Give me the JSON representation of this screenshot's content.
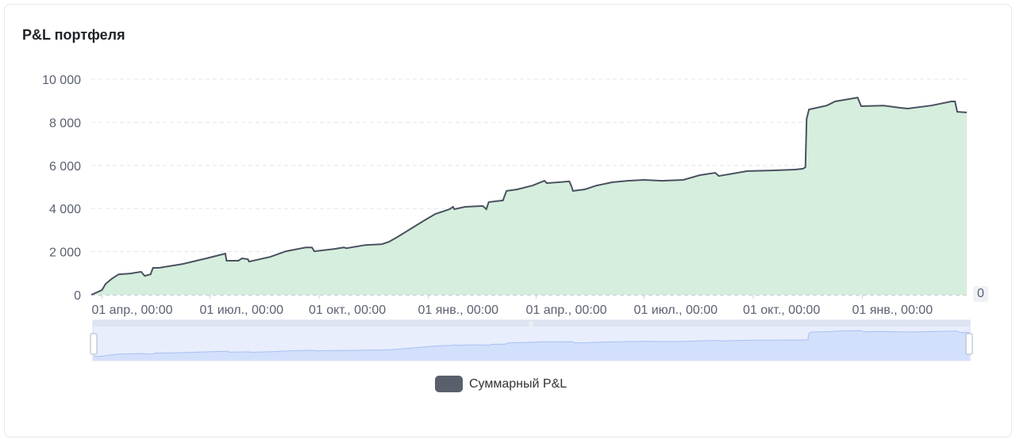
{
  "title": "P&L портфеля",
  "end_badge": "0",
  "legend": {
    "label": "Суммарный P&L",
    "color": "#5a606b"
  },
  "chart_data": {
    "type": "area",
    "title": "P&L портфеля",
    "xlabel": "",
    "ylabel": "",
    "ylim": [
      0,
      10000
    ],
    "xlim": [
      "2023-03-23",
      "2025-03-30"
    ],
    "grid": true,
    "legend_position": "bottom",
    "y_ticks": [
      0,
      2000,
      4000,
      6000,
      8000,
      10000
    ],
    "y_tick_labels": [
      "0",
      "2 000",
      "4 000",
      "6 000",
      "8 000",
      "10 000"
    ],
    "x_ticks": [
      "2023-04-01",
      "2023-07-01",
      "2023-10-01",
      "2024-01-01",
      "2024-04-01",
      "2024-07-01",
      "2024-10-01",
      "2025-01-01"
    ],
    "x_tick_labels": [
      "01 апр., 00:00",
      "01 июл., 00:00",
      "01 окт., 00:00",
      "01 янв., 00:00",
      "01 апр., 00:00",
      "01 июл., 00:00",
      "01 окт., 00:00",
      "01 янв., 00:00"
    ],
    "colors": {
      "line": "#4a5160",
      "area": "#d6eedd",
      "grid": "#e0e6f1",
      "slider_fill": "#d3e0fb",
      "slider_line": "#a9c0f5"
    },
    "series": [
      {
        "name": "Суммарный P&L",
        "x": [
          "2023-03-23",
          "2023-04-01",
          "2023-04-04",
          "2023-04-09",
          "2023-04-15",
          "2023-04-25",
          "2023-05-04",
          "2023-05-07",
          "2023-05-12",
          "2023-05-14",
          "2023-05-19",
          "2023-06-08",
          "2023-06-28",
          "2023-07-14",
          "2023-07-15",
          "2023-07-25",
          "2023-07-28",
          "2023-08-02",
          "2023-08-03",
          "2023-08-21",
          "2023-09-03",
          "2023-09-20",
          "2023-09-25",
          "2023-09-27",
          "2023-10-14",
          "2023-10-22",
          "2023-10-24",
          "2023-11-09",
          "2023-11-23",
          "2023-11-29",
          "2023-12-06",
          "2023-12-19",
          "2023-12-29",
          "2024-01-07",
          "2024-01-19",
          "2024-01-22",
          "2024-01-23",
          "2024-02-01",
          "2024-02-16",
          "2024-02-19",
          "2024-02-21",
          "2024-03-04",
          "2024-03-07",
          "2024-03-16",
          "2024-03-29",
          "2024-04-08",
          "2024-04-10",
          "2024-04-29",
          "2024-05-01",
          "2024-05-02",
          "2024-05-12",
          "2024-05-22",
          "2024-06-04",
          "2024-06-17",
          "2024-07-01",
          "2024-07-16",
          "2024-08-03",
          "2024-08-17",
          "2024-08-30",
          "2024-09-02",
          "2024-09-26",
          "2024-10-16",
          "2024-11-05",
          "2024-11-12",
          "2024-11-14",
          "2024-11-15",
          "2024-11-17",
          "2024-12-02",
          "2024-12-09",
          "2024-12-28",
          "2024-12-31",
          "2025-01-19",
          "2025-02-01",
          "2025-02-08",
          "2025-02-28",
          "2025-03-17",
          "2025-03-20",
          "2025-03-22",
          "2025-03-30"
        ],
        "values": [
          0,
          220,
          500,
          735,
          950,
          990,
          1070,
          880,
          950,
          1250,
          1250,
          1430,
          1690,
          1910,
          1580,
          1580,
          1690,
          1650,
          1540,
          1760,
          2020,
          2200,
          2200,
          2020,
          2130,
          2200,
          2160,
          2310,
          2350,
          2460,
          2680,
          3120,
          3460,
          3750,
          3970,
          4080,
          3970,
          4080,
          4120,
          3970,
          4300,
          4380,
          4820,
          4890,
          5070,
          5290,
          5180,
          5260,
          5000,
          4820,
          4890,
          5070,
          5220,
          5290,
          5330,
          5290,
          5330,
          5550,
          5660,
          5510,
          5740,
          5770,
          5810,
          5850,
          5920,
          8160,
          8600,
          8780,
          8970,
          9150,
          8750,
          8780,
          8680,
          8640,
          8780,
          8970,
          8970,
          8490,
          8460
        ]
      }
    ]
  }
}
